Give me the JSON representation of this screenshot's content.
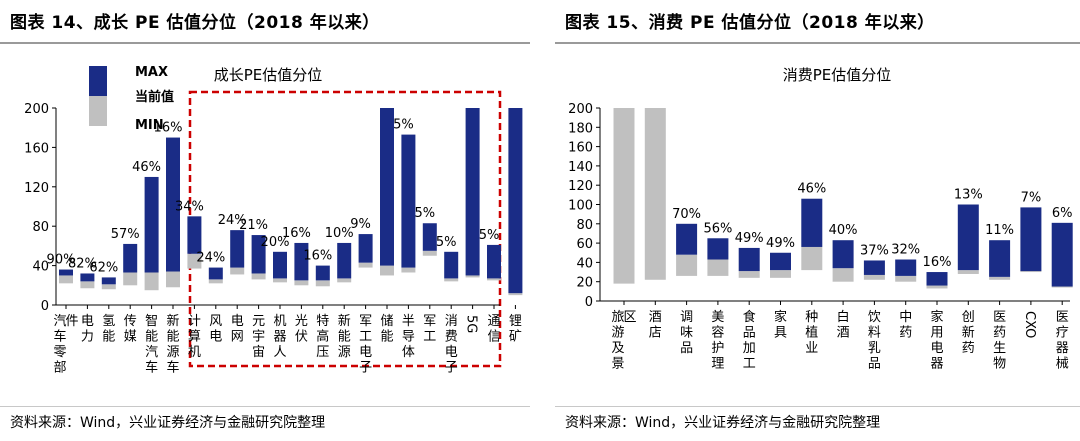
{
  "colors": {
    "navy": "#1a2c86",
    "gray": "#c0c0c0",
    "red": "#cc0000"
  },
  "left": {
    "figure_title": "图表 14、成长 PE 估值分位（2018 年以来）",
    "source": "资料来源：Wind，兴业证券经济与金融研究院整理"
  },
  "right": {
    "figure_title": "图表 15、消费 PE 估值分位（2018 年以来）",
    "source": "资料来源：Wind，兴业证券经济与金融研究院整理"
  },
  "chart_data": [
    {
      "type": "bar",
      "subtype": "floating-range",
      "title": "成长PE估值分位",
      "ylim": [
        0,
        200
      ],
      "yticks": [
        0,
        40,
        80,
        120,
        160,
        200
      ],
      "legend": [
        "MAX",
        "当前值",
        "MIN"
      ],
      "highlight_box": "dashed red box around 风电 through 锂矿",
      "series_definition": "gray segment = MIN to 当前值, navy segment = 当前值 to MAX; label = current PE percentile",
      "categories": [
        "汽车零部件",
        "电力",
        "氢能",
        "传媒",
        "智能汽车",
        "新能源车",
        "计算机",
        "风电",
        "电网",
        "元宇宙",
        "机器人",
        "光伏",
        "特高压",
        "新能源",
        "军工电子",
        "储能",
        "半导体",
        "军工",
        "消费电子",
        "5G",
        "通信",
        "锂矿"
      ],
      "min": [
        22,
        17,
        16,
        20,
        15,
        18,
        37,
        22,
        31,
        26,
        23,
        20,
        19,
        23,
        38,
        30,
        33,
        50,
        24,
        28,
        25,
        10
      ],
      "current": [
        30,
        24,
        21,
        33,
        33,
        34,
        52,
        26,
        38,
        32,
        27,
        25,
        25,
        27,
        43,
        40,
        38,
        55,
        27,
        30,
        27,
        12
      ],
      "max": [
        36,
        32,
        28,
        62,
        130,
        170,
        90,
        38,
        76,
        71,
        54,
        63,
        40,
        63,
        72,
        200,
        173,
        83,
        54,
        200,
        61,
        200
      ],
      "labels": [
        "90%",
        "82%",
        "62%",
        "57%",
        "46%",
        "16%",
        "34%",
        "24%",
        "24%",
        "21%",
        "20%",
        "16%",
        "16%",
        "10%",
        "9%",
        "",
        "5%",
        "5%",
        "5%",
        "",
        "5%",
        ""
      ]
    },
    {
      "type": "bar",
      "subtype": "floating-range",
      "title": "消费PE估值分位",
      "ylim": [
        0,
        200
      ],
      "yticks": [
        0,
        20,
        40,
        60,
        80,
        100,
        120,
        140,
        160,
        180,
        200
      ],
      "series_definition": "gray segment = MIN to 当前值, navy segment = 当前值 to MAX; label = current PE percentile",
      "categories": [
        "旅游及景区",
        "酒店",
        "调味品",
        "美容护理",
        "食品加工",
        "家具",
        "种植业",
        "白酒",
        "饮料乳品",
        "中药",
        "家用电器",
        "创新药",
        "医药生物",
        "CXO",
        "医疗器械"
      ],
      "min": [
        18,
        22,
        26,
        26,
        24,
        24,
        32,
        20,
        22,
        20,
        13,
        28,
        22,
        30,
        14
      ],
      "current": [
        200,
        200,
        48,
        43,
        31,
        32,
        56,
        34,
        27,
        26,
        16,
        32,
        25,
        31,
        15
      ],
      "max": [
        200,
        200,
        80,
        65,
        55,
        50,
        106,
        63,
        42,
        43,
        30,
        100,
        63,
        97,
        81
      ],
      "labels": [
        "",
        "",
        "70%",
        "56%",
        "49%",
        "49%",
        "46%",
        "40%",
        "37%",
        "32%",
        "16%",
        "13%",
        "11%",
        "7%",
        "6%"
      ]
    }
  ]
}
